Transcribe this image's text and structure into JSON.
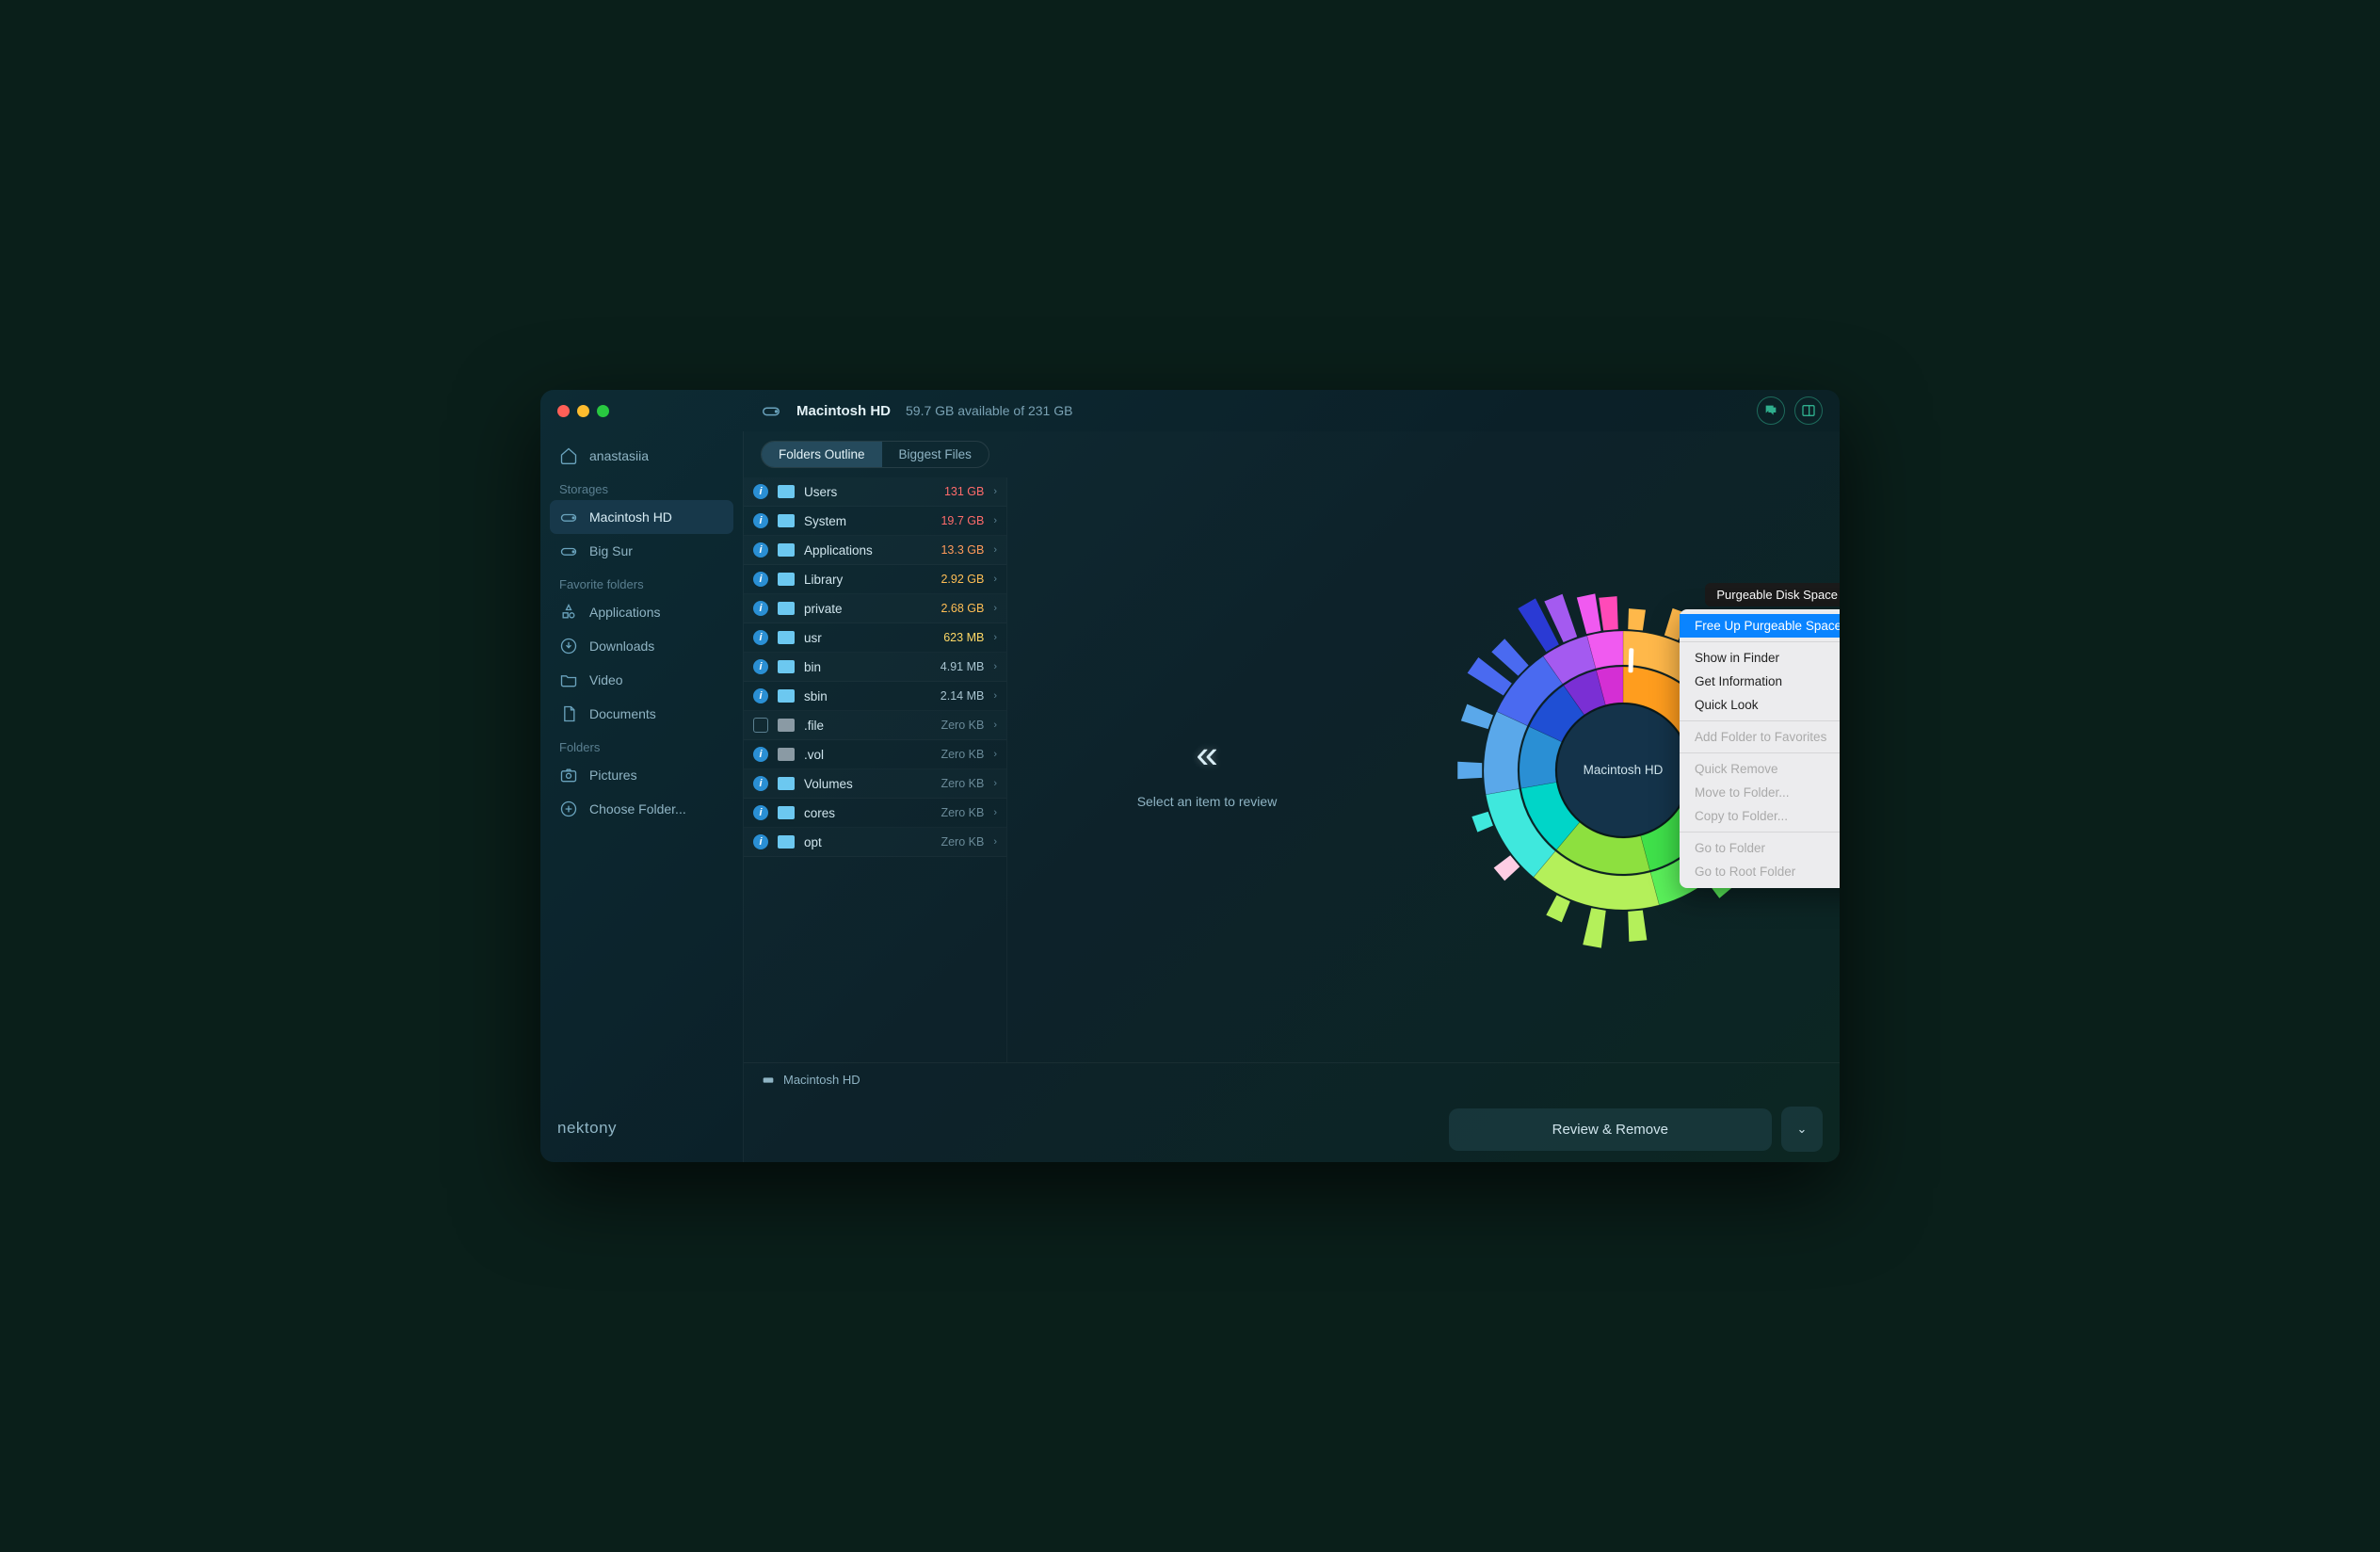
{
  "traffic_colors": [
    "#ff5f57",
    "#febc2e",
    "#28c840"
  ],
  "header": {
    "disk_name": "Macintosh HD",
    "space_text": "59.7 GB available of 231 GB"
  },
  "sidebar": {
    "user": "anastasiia",
    "sections": [
      {
        "title": "Storages",
        "items": [
          {
            "label": "Macintosh HD",
            "icon": "disk",
            "active": true
          },
          {
            "label": "Big Sur",
            "icon": "disk",
            "active": false
          }
        ]
      },
      {
        "title": "Favorite folders",
        "items": [
          {
            "label": "Applications",
            "icon": "apps"
          },
          {
            "label": "Downloads",
            "icon": "download"
          },
          {
            "label": "Video",
            "icon": "folder"
          },
          {
            "label": "Documents",
            "icon": "doc"
          }
        ]
      },
      {
        "title": "Folders",
        "items": [
          {
            "label": "Pictures",
            "icon": "camera"
          },
          {
            "label": "Choose Folder...",
            "icon": "plus"
          }
        ]
      }
    ],
    "brand": "nektony"
  },
  "tabs": {
    "active": "Folders Outline",
    "other": "Biggest Files"
  },
  "folders": [
    {
      "name": "Users",
      "size": "131 GB",
      "size_color": "#ff6b6b",
      "folder_color": "#6cc8f0",
      "info": true
    },
    {
      "name": "System",
      "size": "19.7 GB",
      "size_color": "#ff6b6b",
      "folder_color": "#6cc8f0",
      "info": true
    },
    {
      "name": "Applications",
      "size": "13.3 GB",
      "size_color": "#ff9a5a",
      "folder_color": "#6cc8f0",
      "info": true
    },
    {
      "name": "Library",
      "size": "2.92 GB",
      "size_color": "#ffbe55",
      "folder_color": "#6cc8f0",
      "info": true
    },
    {
      "name": "private",
      "size": "2.68 GB",
      "size_color": "#ffbe55",
      "folder_color": "#6cc8f0",
      "info": true
    },
    {
      "name": "usr",
      "size": "623 MB",
      "size_color": "#ffd966",
      "folder_color": "#6cc8f0",
      "info": true
    },
    {
      "name": "bin",
      "size": "4.91 MB",
      "size_color": "#a8c4d0",
      "folder_color": "#6cc8f0",
      "info": true
    },
    {
      "name": "sbin",
      "size": "2.14 MB",
      "size_color": "#a8c4d0",
      "folder_color": "#6cc8f0",
      "info": true
    },
    {
      "name": ".file",
      "size": "Zero KB",
      "size_color": "#6a8a98",
      "folder_color": "#8a9aa4",
      "info": false
    },
    {
      "name": ".vol",
      "size": "Zero KB",
      "size_color": "#6a8a98",
      "folder_color": "#8a9aa4",
      "info": true
    },
    {
      "name": "Volumes",
      "size": "Zero KB",
      "size_color": "#6a8a98",
      "folder_color": "#6cc8f0",
      "info": true
    },
    {
      "name": "cores",
      "size": "Zero KB",
      "size_color": "#6a8a98",
      "folder_color": "#6cc8f0",
      "info": true
    },
    {
      "name": "opt",
      "size": "Zero KB",
      "size_color": "#6a8a98",
      "folder_color": "#6cc8f0",
      "info": true
    }
  ],
  "preview_text": "Select an item to review",
  "breadcrumb": "Macintosh HD",
  "review_button": "Review & Remove",
  "sunburst": {
    "center_label": "Macintosh HD",
    "inner": [
      {
        "start": -90,
        "sweep": 110,
        "color": "#ff9d1e"
      },
      {
        "start": 20,
        "sweep": 55,
        "color": "#3fe04a"
      },
      {
        "start": 75,
        "sweep": 55,
        "color": "#8de03f"
      },
      {
        "start": 130,
        "sweep": 40,
        "color": "#00d5c8"
      },
      {
        "start": 170,
        "sweep": 35,
        "color": "#2a8fd4"
      },
      {
        "start": 205,
        "sweep": 30,
        "color": "#1f4fd4"
      },
      {
        "start": 235,
        "sweep": 20,
        "color": "#7a2fd4"
      },
      {
        "start": 255,
        "sweep": 15,
        "color": "#d42fd4"
      }
    ],
    "outer": [
      {
        "start": -90,
        "sweep": 50,
        "color": "#ffb84a"
      },
      {
        "start": -40,
        "sweep": 60,
        "color": "#ff8a1e"
      },
      {
        "start": 20,
        "sweep": 55,
        "color": "#5af05a"
      },
      {
        "start": 75,
        "sweep": 55,
        "color": "#b4f05a"
      },
      {
        "start": 130,
        "sweep": 40,
        "color": "#3fe8dd"
      },
      {
        "start": 170,
        "sweep": 35,
        "color": "#5aa8ea"
      },
      {
        "start": 205,
        "sweep": 30,
        "color": "#4a6af0"
      },
      {
        "start": 235,
        "sweep": 20,
        "color": "#a45af0"
      },
      {
        "start": 255,
        "sweep": 15,
        "color": "#f05af0"
      }
    ],
    "spikes": [
      {
        "angle": -85,
        "len": 22,
        "color": "#ffb84a"
      },
      {
        "angle": -70,
        "len": 30,
        "color": "#ffb84a"
      },
      {
        "angle": -50,
        "len": 18,
        "color": "#ff8a1e"
      },
      {
        "angle": -30,
        "len": 26,
        "color": "#ff8a1e"
      },
      {
        "angle": -10,
        "len": 20,
        "color": "#ff8a1e"
      },
      {
        "angle": 30,
        "len": 28,
        "color": "#5af05a"
      },
      {
        "angle": 50,
        "len": 20,
        "color": "#5af05a"
      },
      {
        "angle": 85,
        "len": 32,
        "color": "#b4f05a"
      },
      {
        "angle": 100,
        "len": 40,
        "color": "#b4f05a"
      },
      {
        "angle": 115,
        "len": 24,
        "color": "#b4f05a"
      },
      {
        "angle": 140,
        "len": 22,
        "color": "#ffcde4"
      },
      {
        "angle": 160,
        "len": 18,
        "color": "#3fe8dd"
      },
      {
        "angle": 180,
        "len": 26,
        "color": "#5aa8ea"
      },
      {
        "angle": 200,
        "len": 30,
        "color": "#5aa8ea"
      },
      {
        "angle": 215,
        "len": 45,
        "color": "#4a6af0"
      },
      {
        "angle": 225,
        "len": 38,
        "color": "#4a6af0"
      },
      {
        "angle": 240,
        "len": 55,
        "color": "#2a3ad4"
      },
      {
        "angle": 248,
        "len": 48,
        "color": "#a45af0"
      },
      {
        "angle": 258,
        "len": 40,
        "color": "#f05af0"
      },
      {
        "angle": 265,
        "len": 35,
        "color": "#ff4ab8"
      }
    ]
  },
  "tooltip": "Purgeable Disk Space",
  "context_menu": [
    {
      "label": "Free Up Purgeable Space",
      "hl": true
    },
    {
      "sep": true
    },
    {
      "label": "Show in Finder"
    },
    {
      "label": "Get Information"
    },
    {
      "label": "Quick Look"
    },
    {
      "sep": true
    },
    {
      "label": "Add Folder to Favorites",
      "disabled": true
    },
    {
      "sep": true
    },
    {
      "label": "Quick Remove",
      "disabled": true
    },
    {
      "label": "Move to Folder...",
      "disabled": true
    },
    {
      "label": "Copy to Folder...",
      "disabled": true
    },
    {
      "sep": true
    },
    {
      "label": "Go to Folder",
      "disabled": true
    },
    {
      "label": "Go to Root Folder",
      "disabled": true
    }
  ]
}
